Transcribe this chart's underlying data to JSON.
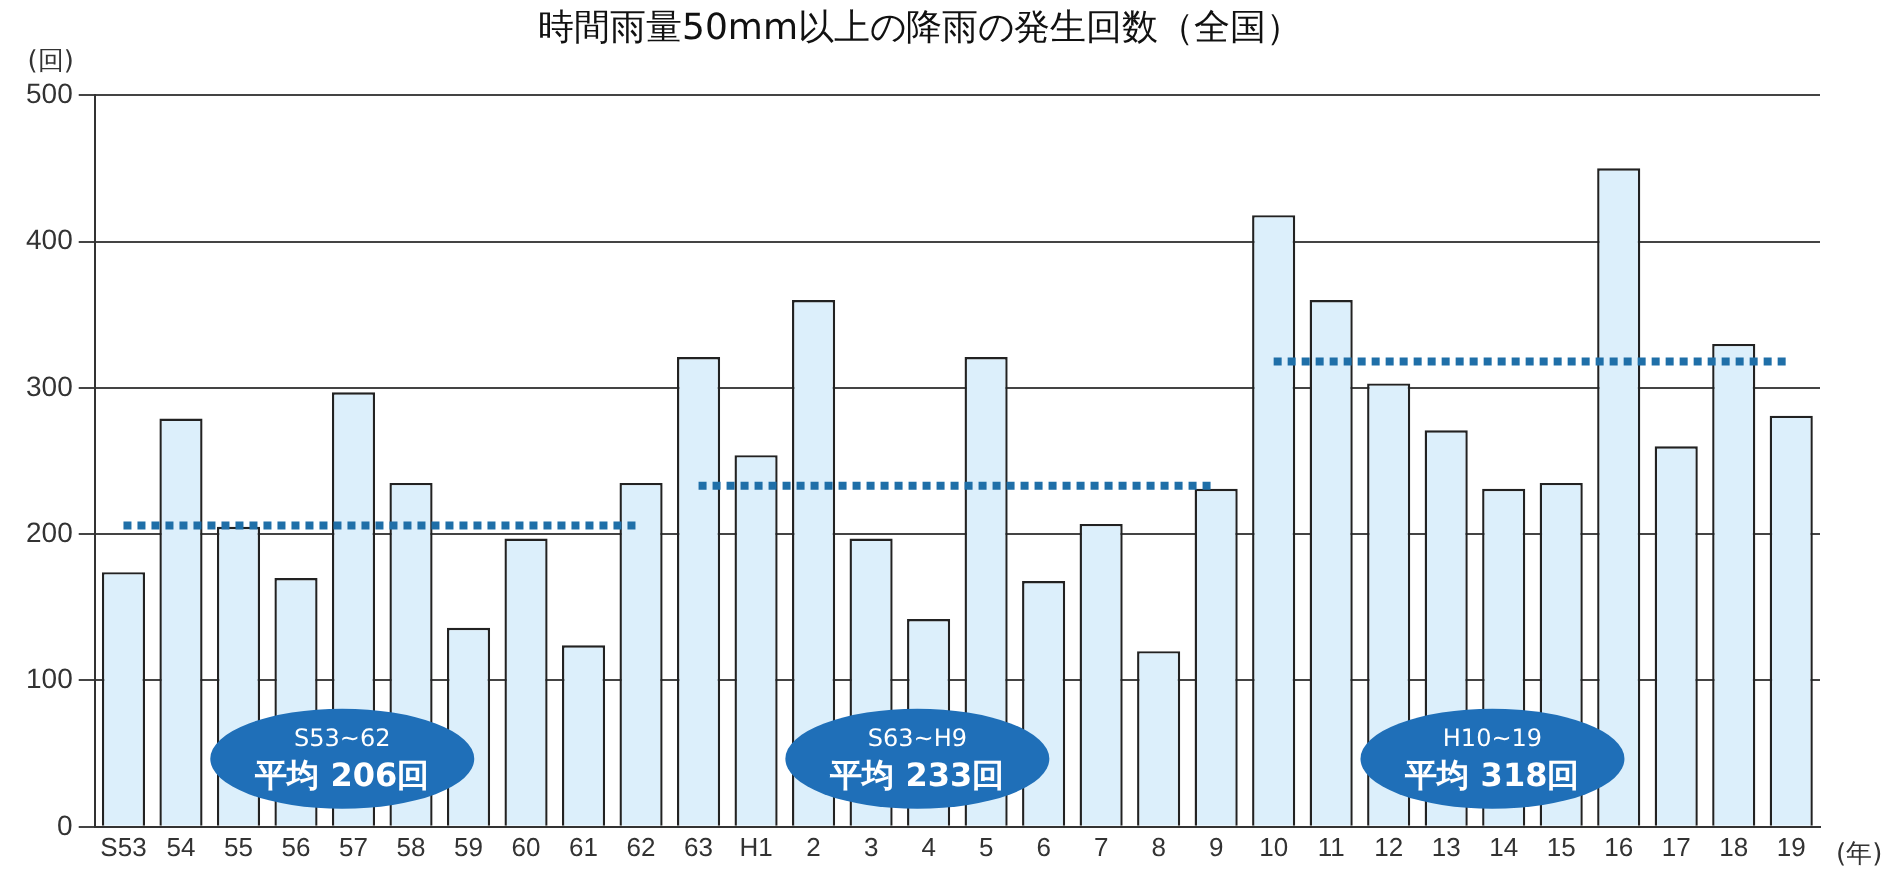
{
  "chart_data": {
    "type": "bar",
    "title": "時間雨量50mm以上の降雨の発生回数（全国）",
    "ylabel": "(回)",
    "xlabel": "(年)",
    "categories": [
      "S53",
      "54",
      "55",
      "56",
      "57",
      "58",
      "59",
      "60",
      "61",
      "62",
      "63",
      "H1",
      "2",
      "3",
      "4",
      "5",
      "6",
      "7",
      "8",
      "9",
      "10",
      "11",
      "12",
      "13",
      "14",
      "15",
      "16",
      "17",
      "18",
      "19"
    ],
    "series": [
      {
        "color": "#dceffb",
        "values": [
          174,
          279,
          205,
          170,
          297,
          235,
          136,
          197,
          124,
          235,
          321,
          254,
          360,
          197,
          142,
          321,
          168,
          207,
          120,
          231,
          418,
          360,
          303,
          271,
          231,
          235,
          450,
          260,
          330,
          281
        ]
      },
      {
        "type": "line",
        "color": "#1f6fa8",
        "line_style": "dotted",
        "values": [
          206,
          206,
          206,
          206,
          206,
          206,
          206,
          206,
          206,
          206,
          null,
          null,
          null,
          null,
          null,
          null,
          null,
          null,
          null,
          null,
          null,
          null,
          null,
          null,
          null,
          null,
          null,
          null,
          null,
          null
        ]
      },
      {
        "type": "line",
        "color": "#1f6fa8",
        "line_style": "dotted",
        "values": [
          null,
          null,
          null,
          null,
          null,
          null,
          null,
          null,
          null,
          null,
          233,
          233,
          233,
          233,
          233,
          233,
          233,
          233,
          233,
          233,
          null,
          null,
          null,
          null,
          null,
          null,
          null,
          null,
          null,
          null
        ]
      },
      {
        "type": "line",
        "color": "#1f6fa8",
        "line_style": "dotted",
        "values": [
          null,
          null,
          null,
          null,
          null,
          null,
          null,
          null,
          null,
          null,
          null,
          null,
          null,
          null,
          null,
          null,
          null,
          null,
          null,
          null,
          318,
          318,
          318,
          318,
          318,
          318,
          318,
          318,
          318,
          318
        ]
      }
    ],
    "marker": "none",
    "ylim": [
      0,
      500
    ],
    "yticks": [
      0,
      100,
      200,
      300,
      400,
      500
    ],
    "grid": "y",
    "legend": false,
    "annotations": [
      "S53~62\n平均 206回",
      "S63~H9\n平均 233回",
      "H10~19\n平均 318回"
    ]
  }
}
